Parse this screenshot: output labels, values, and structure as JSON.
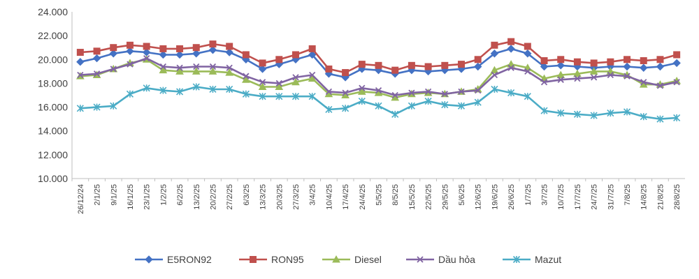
{
  "chart_data": {
    "type": "line",
    "title": "",
    "xlabel": "",
    "ylabel": "",
    "ylim": [
      10000,
      24000
    ],
    "yticks": [
      "10.000",
      "12.000",
      "14.000",
      "16.000",
      "18.000",
      "20.000",
      "22.000",
      "24.000"
    ],
    "ytick_values": [
      10000,
      12000,
      14000,
      16000,
      18000,
      20000,
      22000,
      24000
    ],
    "grid": false,
    "legend_position": "bottom",
    "categories": [
      "26/12/24",
      "2/1/25",
      "9/1/25",
      "16/1/25",
      "23/1/25",
      "1/2/25",
      "6/2/25",
      "13/2/25",
      "20/2/25",
      "27/2/25",
      "6/3/25",
      "13/3/25",
      "20/3/25",
      "27/3/25",
      "3/4/25",
      "10/4/25",
      "17/4/25",
      "24/4/25",
      "5/5/25",
      "8/5/25",
      "15/5/25",
      "22/5/25",
      "29/5/25",
      "5/6/25",
      "12/6/25",
      "19/6/25",
      "26/6/25",
      "1/7/25",
      "3/7/25",
      "10/7/25",
      "17/7/25",
      "24/7/25",
      "31/7/25",
      "7/8/25",
      "14/8/25",
      "21/8/25",
      "28/8/25"
    ],
    "series": [
      {
        "name": "E5RON92",
        "color": "#4472C4",
        "marker": "diamond",
        "values": [
          19800,
          20100,
          20500,
          20700,
          20600,
          20400,
          20400,
          20500,
          20800,
          20600,
          20000,
          19200,
          19600,
          20000,
          20400,
          18800,
          18500,
          19200,
          19100,
          18800,
          19100,
          19000,
          19100,
          19200,
          19400,
          20500,
          20900,
          20500,
          19400,
          19500,
          19400,
          19300,
          19400,
          19400,
          19300,
          19400,
          19700
        ]
      },
      {
        "name": "RON95",
        "color": "#C0504D",
        "marker": "square",
        "values": [
          20600,
          20700,
          21000,
          21200,
          21100,
          20900,
          20900,
          21000,
          21300,
          21100,
          20400,
          19700,
          20000,
          20400,
          20900,
          19200,
          18900,
          19600,
          19500,
          19100,
          19500,
          19400,
          19500,
          19600,
          20000,
          21200,
          21500,
          21100,
          19900,
          20000,
          19800,
          19700,
          19800,
          20000,
          19900,
          20000,
          20400
        ]
      },
      {
        "name": "Diesel",
        "color": "#9BBB59",
        "marker": "triangle",
        "values": [
          18600,
          18700,
          19200,
          19700,
          20000,
          19100,
          19000,
          19000,
          19000,
          18900,
          18300,
          17700,
          17700,
          18100,
          18400,
          17100,
          17000,
          17300,
          17200,
          16800,
          17100,
          17200,
          17100,
          17300,
          17500,
          19100,
          19600,
          19300,
          18400,
          18700,
          18800,
          19000,
          19000,
          18700,
          17900,
          17900,
          18200
        ]
      },
      {
        "name": "Dầu hỏa",
        "color": "#8064A2",
        "marker": "x",
        "values": [
          18700,
          18800,
          19200,
          19600,
          20100,
          19400,
          19300,
          19400,
          19400,
          19300,
          18600,
          18100,
          18000,
          18500,
          18700,
          17300,
          17200,
          17600,
          17400,
          17000,
          17200,
          17300,
          17100,
          17300,
          17400,
          18700,
          19300,
          19000,
          18100,
          18300,
          18400,
          18500,
          18700,
          18600,
          18100,
          17800,
          18100
        ]
      },
      {
        "name": "Mazut",
        "color": "#4BACC6",
        "marker": "asterisk",
        "values": [
          15900,
          16000,
          16100,
          17100,
          17600,
          17400,
          17300,
          17700,
          17500,
          17500,
          17100,
          16900,
          16900,
          16900,
          16900,
          15800,
          15900,
          16500,
          16100,
          15400,
          16100,
          16500,
          16200,
          16100,
          16400,
          17500,
          17200,
          16900,
          15700,
          15500,
          15400,
          15300,
          15500,
          15600,
          15200,
          15000,
          15100
        ]
      }
    ]
  }
}
